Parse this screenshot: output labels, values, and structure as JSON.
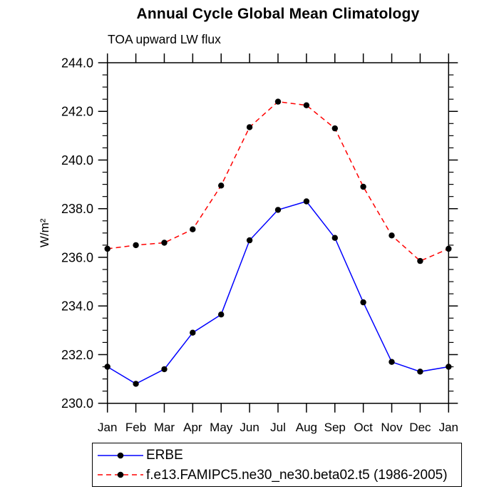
{
  "chart_data": {
    "type": "line",
    "title": "Annual Cycle Global Mean Climatology",
    "subtitle": "TOA upward LW flux",
    "ylabel": "W/m²",
    "xlabel": "",
    "ylim": [
      230.0,
      244.0
    ],
    "ytick_major_step": 2.0,
    "ytick_minor_step": 0.5,
    "ytick_labels": [
      "230.0",
      "232.0",
      "234.0",
      "236.0",
      "238.0",
      "240.0",
      "242.0",
      "244.0"
    ],
    "categories": [
      "Jan",
      "Feb",
      "Mar",
      "Apr",
      "May",
      "Jun",
      "Jul",
      "Aug",
      "Sep",
      "Oct",
      "Nov",
      "Dec",
      "Jan"
    ],
    "grid": false,
    "frame": "box",
    "legend_position": "bottom-left",
    "marker_description": "filled-black-circle",
    "series": [
      {
        "name": "ERBE",
        "line_color": "#0000ff",
        "line_style": "solid",
        "marker_color": "#000000",
        "values": [
          231.5,
          230.8,
          231.4,
          232.9,
          233.65,
          236.7,
          237.95,
          238.3,
          236.8,
          234.15,
          231.7,
          231.3,
          231.5
        ]
      },
      {
        "name": "f.e13.FAMIPC5.ne30_ne30.beta02.t5 (1986-2005)",
        "line_color": "#ff0000",
        "line_style": "dashed",
        "marker_color": "#000000",
        "values": [
          236.35,
          236.5,
          236.6,
          237.15,
          238.95,
          241.35,
          242.4,
          242.25,
          241.3,
          238.9,
          236.9,
          235.85,
          236.35
        ]
      }
    ]
  }
}
